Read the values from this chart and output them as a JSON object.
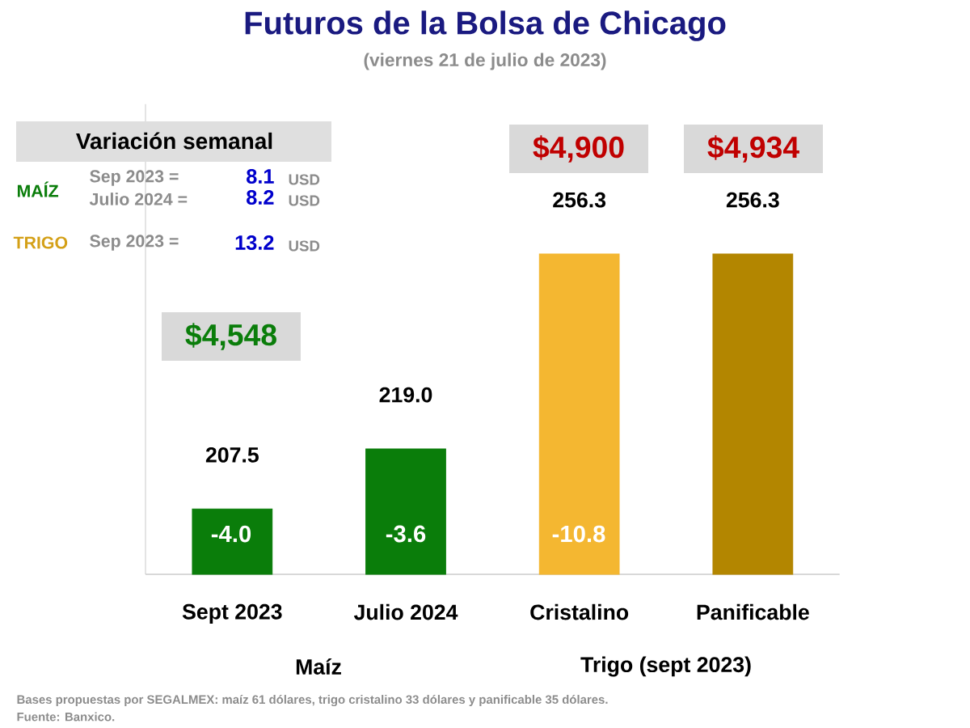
{
  "chart_data": {
    "type": "bar",
    "title": "Futuros de la Bolsa de Chicago",
    "subtitle": "(viernes 21 de julio de 2023)",
    "categories": [
      "Sept 2023",
      "Julio 2024",
      "Cristalino",
      "Panificable"
    ],
    "values": [
      207.5,
      219.0,
      256.3,
      256.3
    ],
    "colors": [
      "#0a7d0a",
      "#0a7d0a",
      "#f4b731",
      "#b38600"
    ],
    "value_labels": [
      "207.5",
      "219.0",
      "256.3",
      "256.3"
    ],
    "ylim": [
      195,
      285
    ],
    "tick_labels": "x",
    "annotations": [
      "Variación semanal",
      "MAÍZ",
      "Sep 2023 =",
      "8.1",
      "USD",
      "Julio 2024 =",
      "8.2",
      "USD",
      "TRIGO",
      "Sep 2023 =",
      "13.2",
      "USD",
      "Maíz",
      "Trigo (sept 2023)",
      "Bases propuestas por SEGALMEX: maíz 61 dólares, trigo cristalino 33 dólares y panificable 35 dólares.",
      "Fuente: Banxico.",
      "-4.0",
      "-3.6",
      "-10.8",
      "$4,548",
      "$4,900",
      "$4,934"
    ]
  }
}
